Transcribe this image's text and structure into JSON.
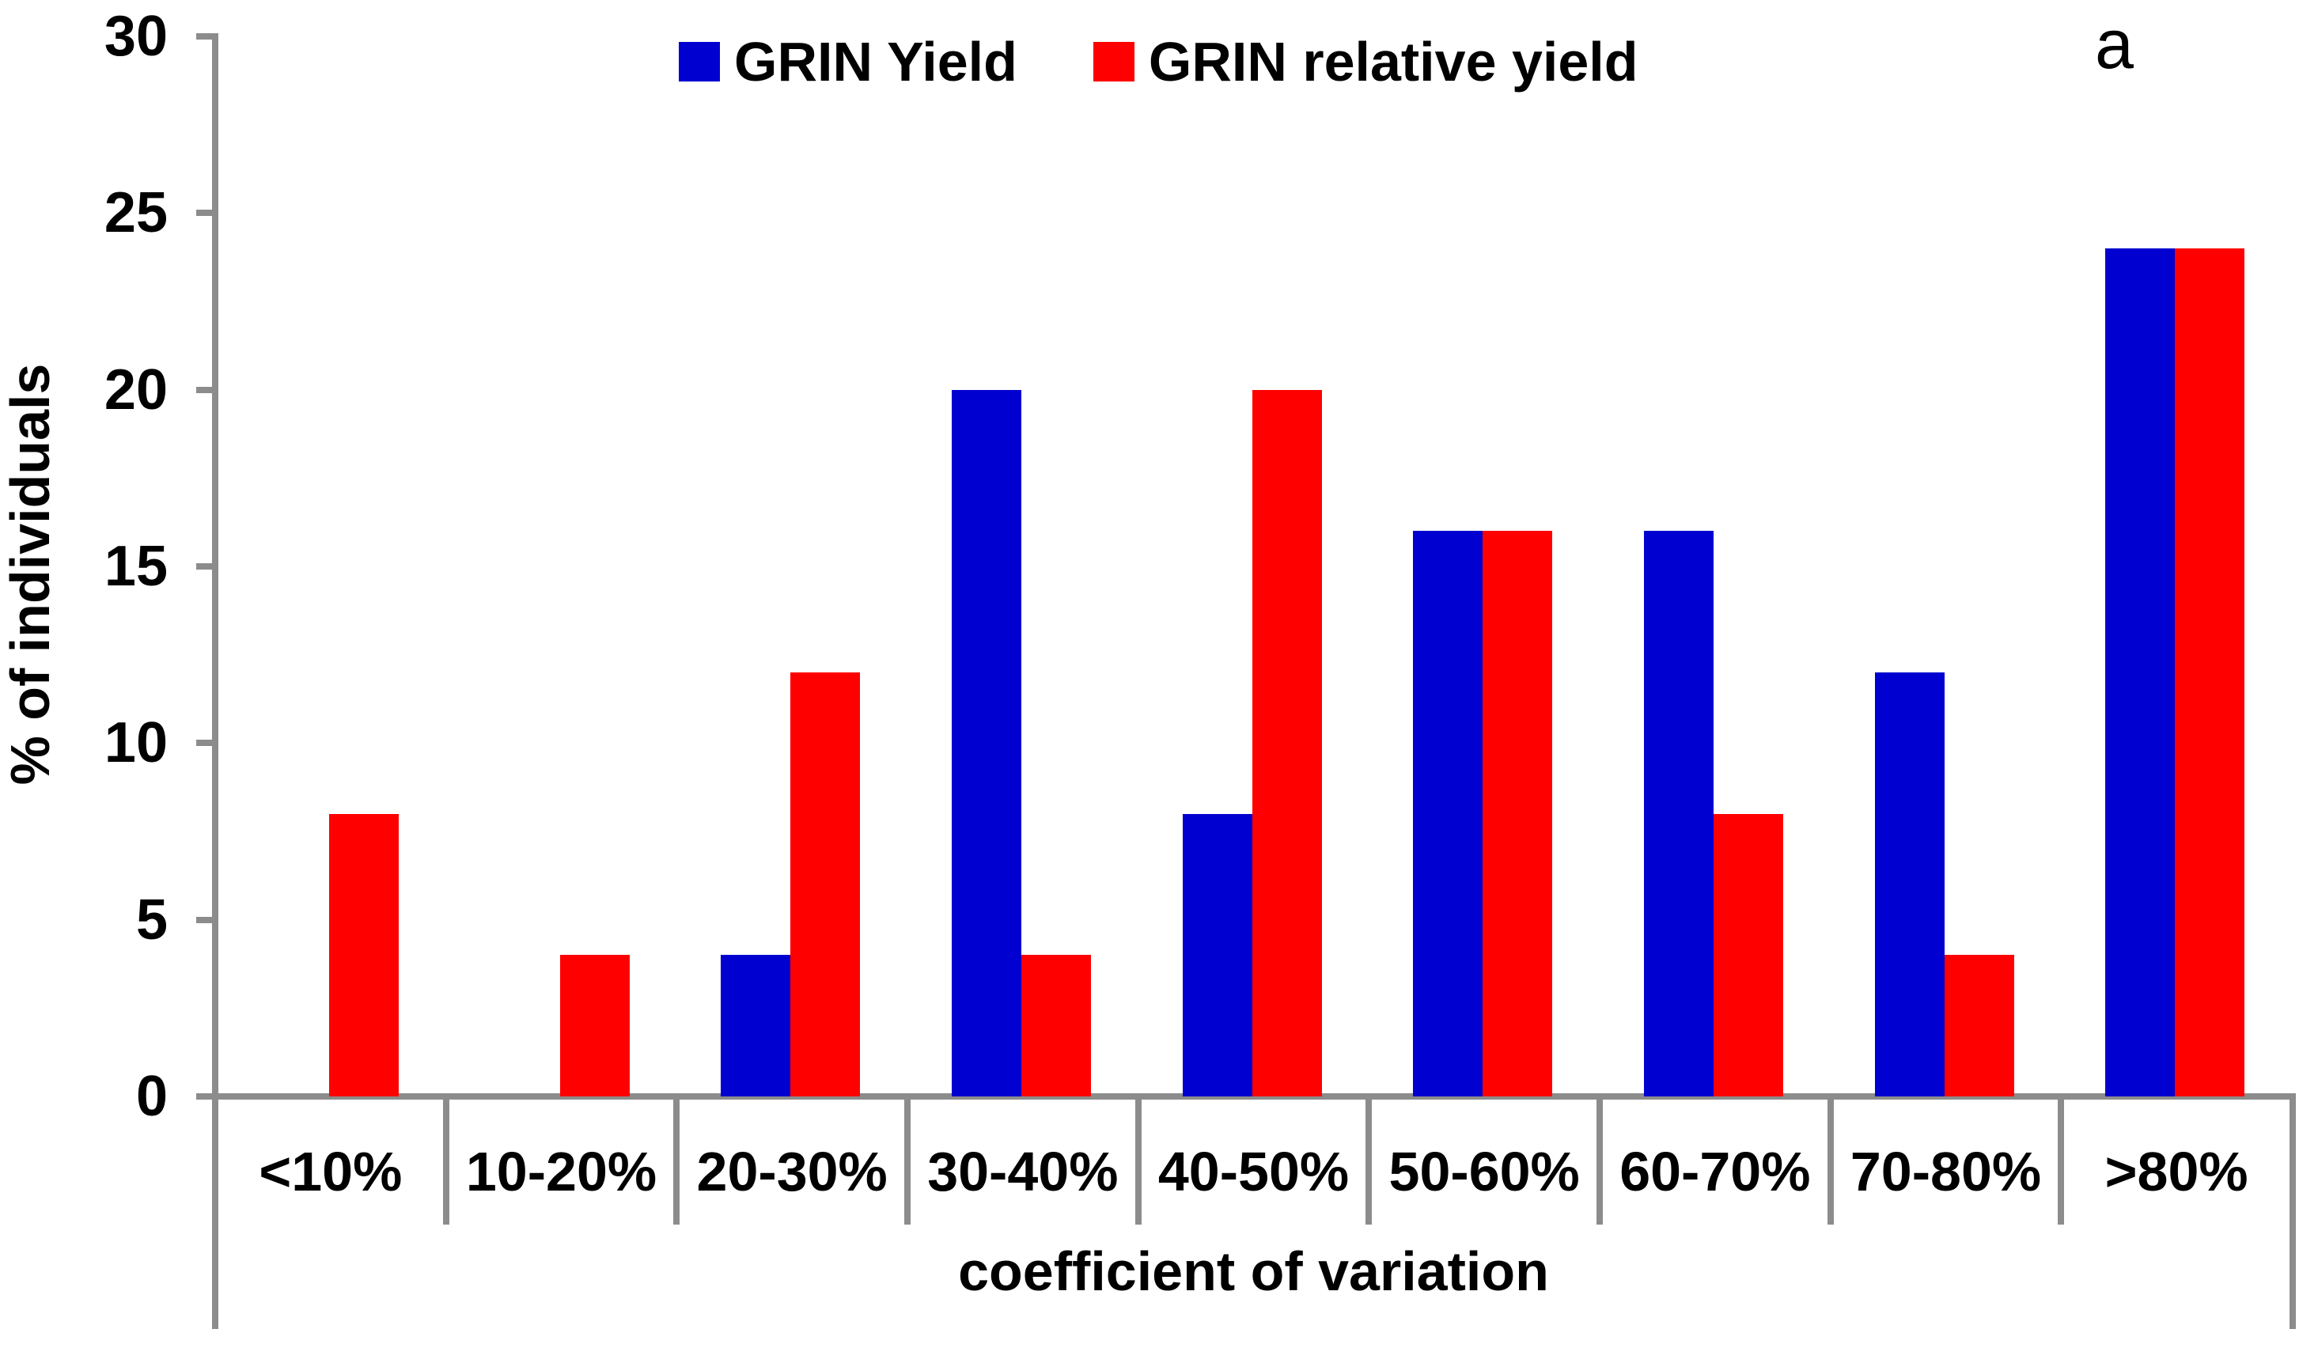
{
  "chart_data": {
    "type": "bar",
    "title": "",
    "categories": [
      "<10%",
      "10-20%",
      "20-30%",
      "30-40%",
      "40-50%",
      "50-60%",
      "60-70%",
      "70-80%",
      ">80%"
    ],
    "series": [
      {
        "name": "GRIN Yield",
        "color": "#0000D0",
        "values": [
          0,
          0,
          4,
          20,
          8,
          16,
          16,
          12,
          24
        ]
      },
      {
        "name": "GRIN relative yield",
        "color": "#FF0000",
        "values": [
          8,
          4,
          12,
          4,
          20,
          16,
          8,
          4,
          24
        ]
      }
    ],
    "xlabel": "coefficient of variation",
    "ylabel": "% of individuals",
    "ylim": [
      0,
      30
    ],
    "yticks": [
      0,
      5,
      10,
      15,
      20,
      25,
      30
    ],
    "grid": false,
    "legend_position": "top-center",
    "annotation": "a"
  },
  "colors": {
    "axis": "#8C8C8C",
    "text": "#000000",
    "background": "#FFFFFF",
    "series_blue": "#0000D0",
    "series_red": "#FF0000"
  }
}
